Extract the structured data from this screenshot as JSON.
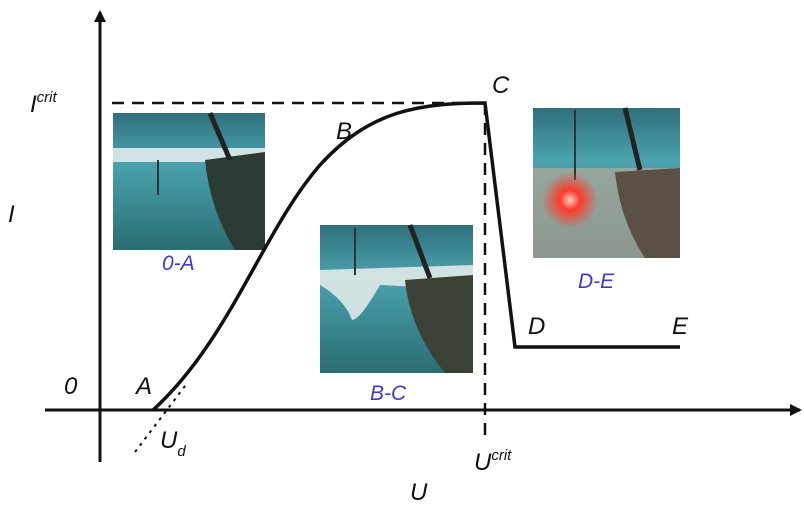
{
  "axes": {
    "y_label": "I",
    "x_label": "U"
  },
  "marks": {
    "i_crit": {
      "base": "I",
      "sup": "crit"
    },
    "u_crit": {
      "base": "U",
      "sup": "crit"
    },
    "u_d": {
      "base": "U",
      "sub": "d"
    }
  },
  "points": [
    "0",
    "A",
    "B",
    "C",
    "D",
    "E"
  ],
  "photos": [
    "0-A",
    "B-C",
    "D-E"
  ]
}
